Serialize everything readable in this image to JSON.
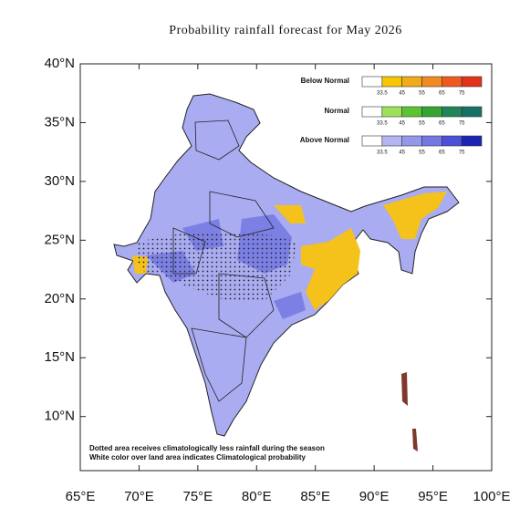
{
  "title": "Probability rainfall forecast for May 2026",
  "map": {
    "xlim": [
      65,
      100
    ],
    "ylim": [
      5.4,
      40
    ],
    "xticks": [
      {
        "value": 65,
        "label": "65°E"
      },
      {
        "value": 70,
        "label": "70°E"
      },
      {
        "value": 75,
        "label": "75°E"
      },
      {
        "value": 80,
        "label": "80°E"
      },
      {
        "value": 85,
        "label": "85°E"
      },
      {
        "value": 90,
        "label": "90°E"
      },
      {
        "value": 95,
        "label": "95°E"
      },
      {
        "value": 100,
        "label": "100°E"
      }
    ],
    "yticks": [
      {
        "value": 10,
        "label": "10°N"
      },
      {
        "value": 15,
        "label": "15°N"
      },
      {
        "value": 20,
        "label": "20°N"
      },
      {
        "value": 25,
        "label": "25°N"
      },
      {
        "value": 30,
        "label": "30°N"
      },
      {
        "value": 35,
        "label": "35°N"
      },
      {
        "value": 40,
        "label": "40°N"
      }
    ]
  },
  "legend": {
    "ticks": [
      33.5,
      45,
      55,
      65,
      75
    ],
    "rows": [
      {
        "name": "Below Normal",
        "colors": [
          "#ffffff",
          "#f7c600",
          "#f2aa1a",
          "#f08a22",
          "#f05a1e",
          "#e2321a"
        ]
      },
      {
        "name": "Normal",
        "colors": [
          "#ffffff",
          "#9fe05a",
          "#5cc432",
          "#34a432",
          "#23845a",
          "#177064"
        ]
      },
      {
        "name": "Above Normal",
        "colors": [
          "#ffffff",
          "#b3b6f2",
          "#9498ea",
          "#7377e2",
          "#4c50d8",
          "#1c24b2"
        ]
      }
    ]
  },
  "notes": [
    "Dotted area receives climatologically less rainfall during the season",
    "White color over land area indicates Climatological probability"
  ]
}
